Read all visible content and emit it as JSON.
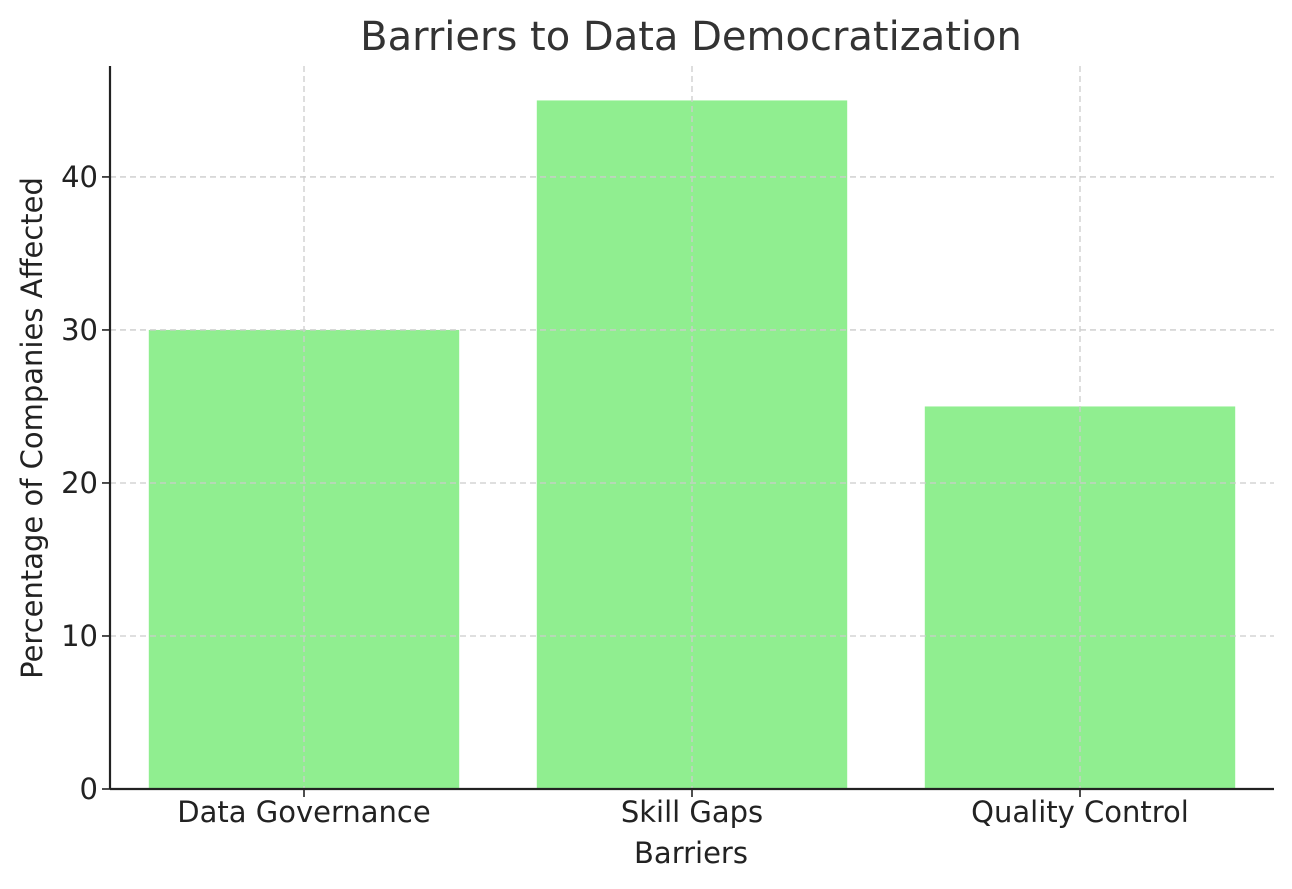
{
  "chart_data": {
    "type": "bar",
    "title": "Barriers to Data Democratization",
    "xlabel": "Barriers",
    "ylabel": "Percentage of Companies Affected",
    "categories": [
      "Data Governance",
      "Skill Gaps",
      "Quality Control"
    ],
    "values": [
      30,
      45,
      25
    ],
    "ylim": [
      0,
      47.25
    ],
    "yticks": [
      0,
      10,
      20,
      30,
      40
    ],
    "grid": true,
    "legend": "none",
    "bar_color": "#90ee90"
  }
}
